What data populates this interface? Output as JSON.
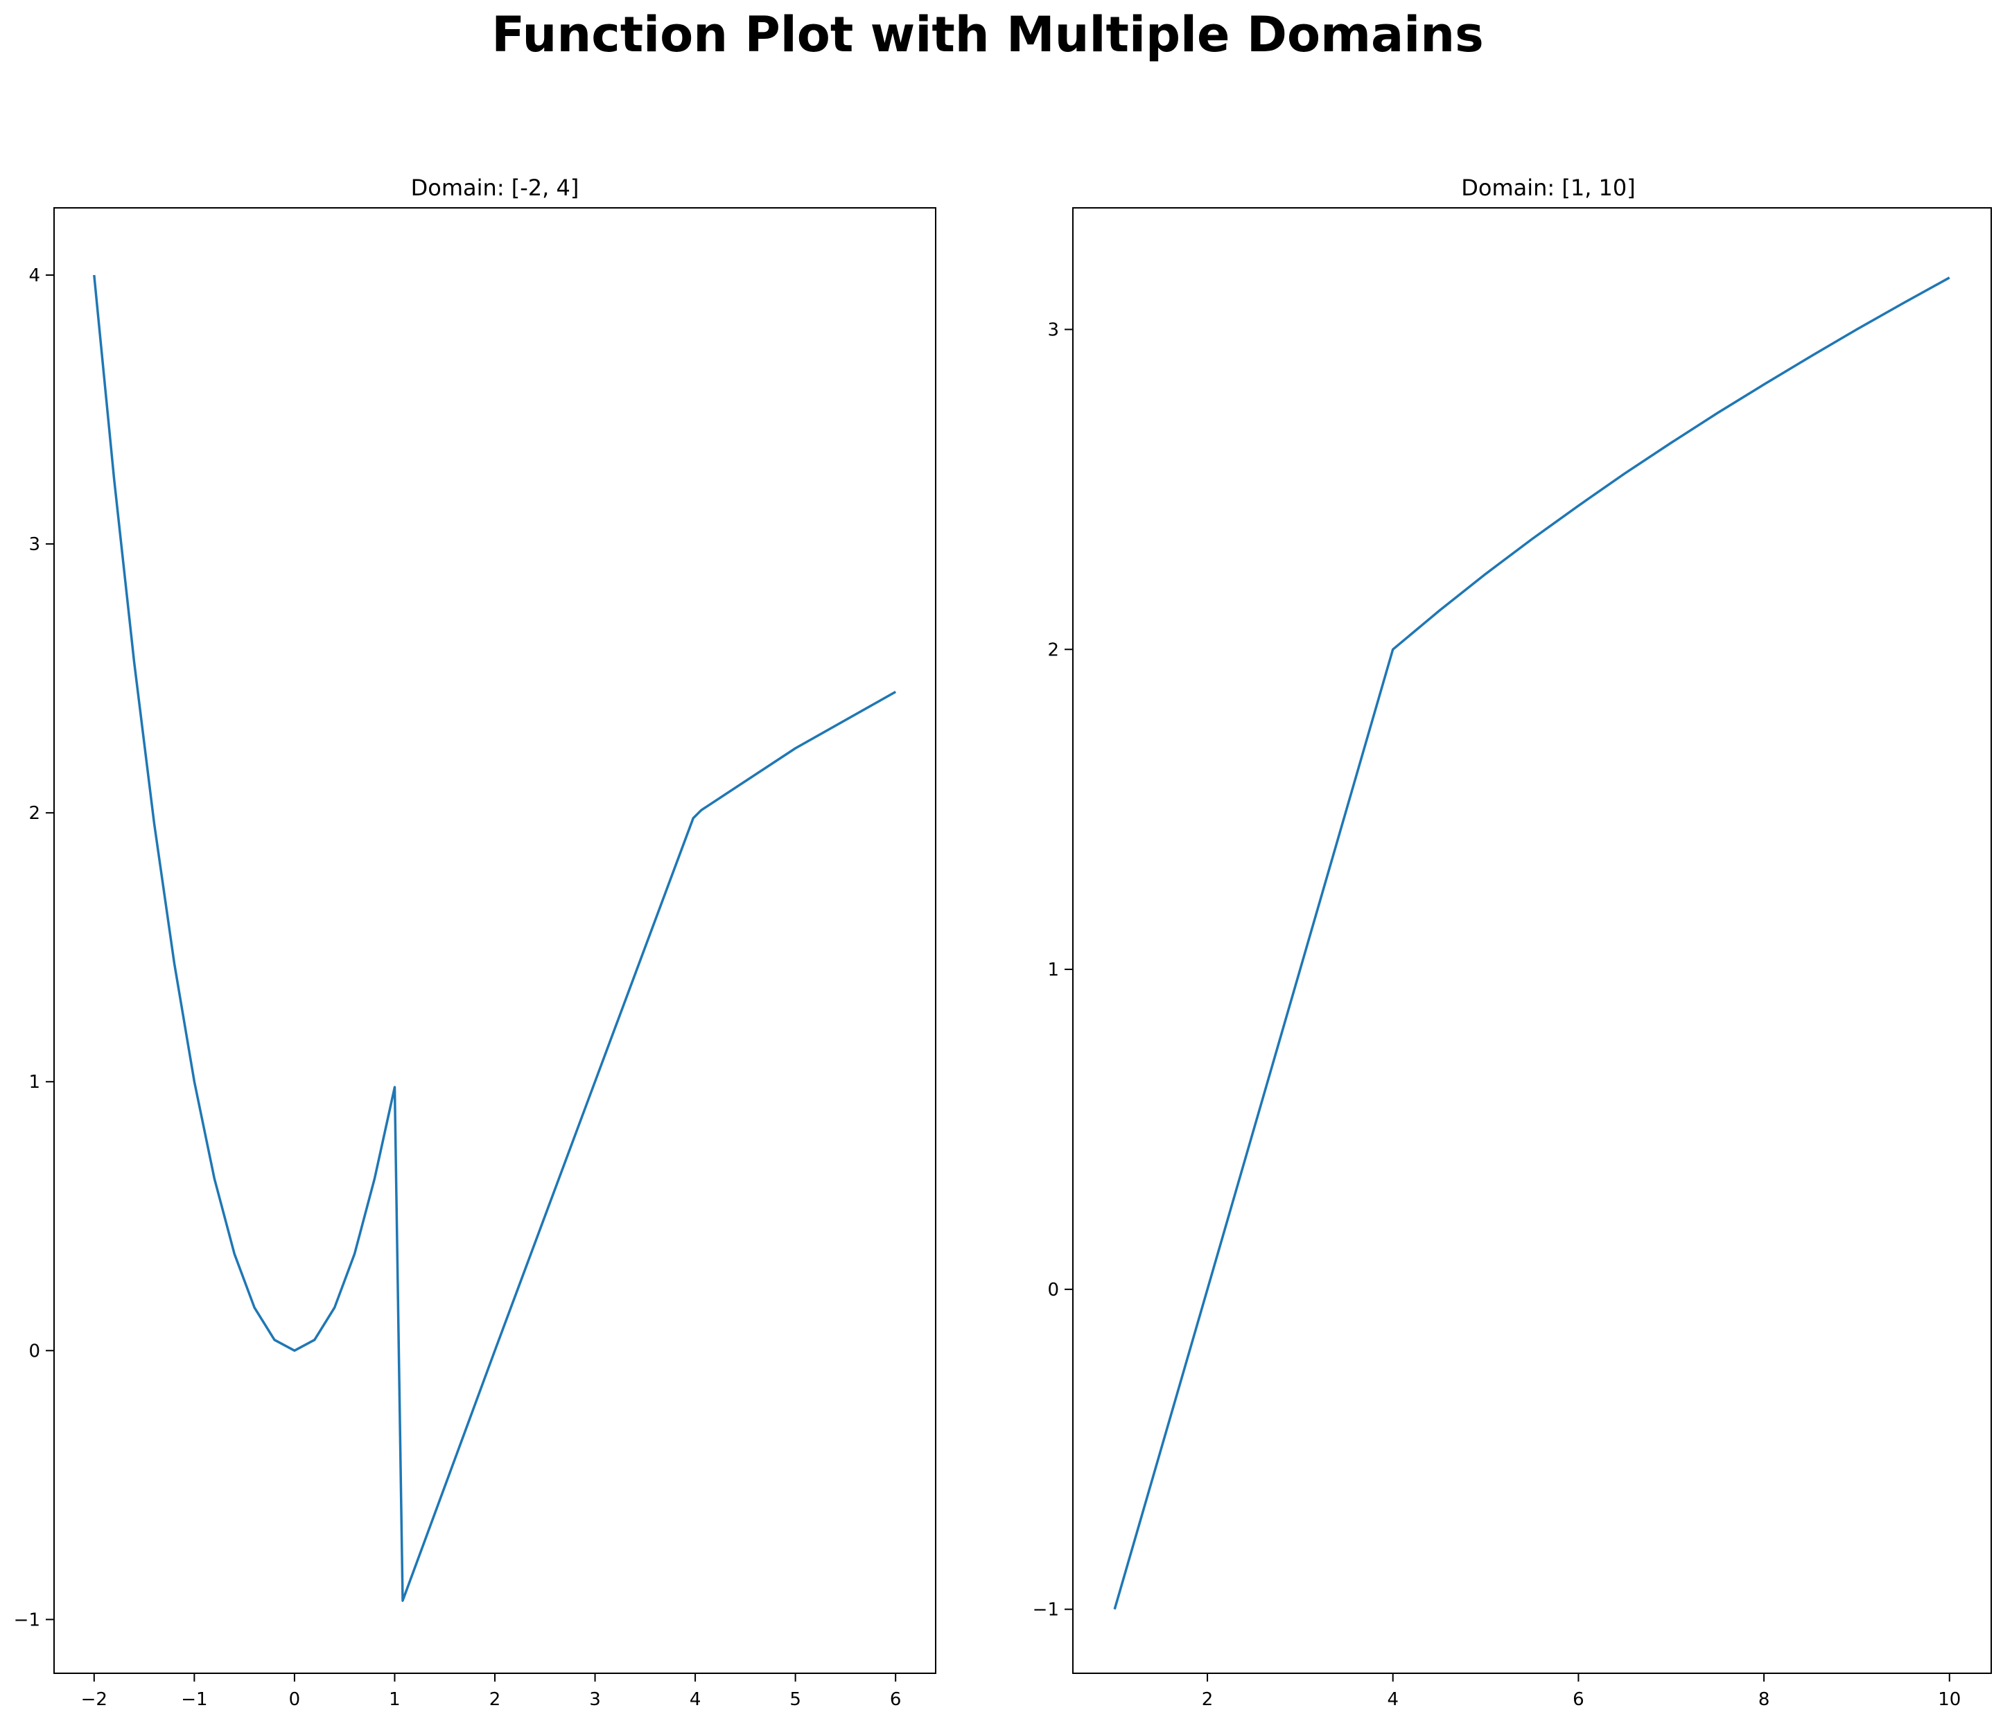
{
  "figure": {
    "title": "Function Plot with Multiple Domains"
  },
  "chart_data": [
    {
      "type": "line",
      "title": "Domain: [-2, 4]",
      "xlabel": "",
      "ylabel": "",
      "xlim": [
        -2.4,
        6.4
      ],
      "ylim": [
        -1.2,
        4.25
      ],
      "xticks": [
        -2,
        -1,
        0,
        1,
        2,
        3,
        4,
        5,
        6
      ],
      "xtick_labels": [
        "−2",
        "−1",
        "0",
        "1",
        "2",
        "3",
        "4",
        "5",
        "6"
      ],
      "yticks": [
        -1,
        0,
        1,
        2,
        3,
        4
      ],
      "ytick_labels": [
        "−1",
        "0",
        "1",
        "2",
        "3",
        "4"
      ],
      "grid": false,
      "color": "#1f77b4",
      "series": [
        {
          "x": [
            -2.0,
            -1.8,
            -1.6,
            -1.4,
            -1.2,
            -1.0,
            -0.8,
            -0.6,
            -0.4,
            -0.2,
            0.0,
            0.2,
            0.4,
            0.6,
            0.8,
            1.0,
            1.08,
            2.0,
            3.0,
            3.98,
            4.06,
            5.0,
            6.0
          ],
          "y": [
            4.0,
            3.24,
            2.56,
            1.96,
            1.44,
            1.0,
            0.64,
            0.36,
            0.16,
            0.04,
            0.0,
            0.04,
            0.16,
            0.36,
            0.64,
            0.98,
            -0.93,
            0.0,
            1.0,
            1.98,
            2.01,
            2.24,
            2.45
          ]
        }
      ]
    },
    {
      "type": "line",
      "title": "Domain: [1, 10]",
      "xlabel": "",
      "ylabel": "",
      "xlim": [
        0.55,
        10.45
      ],
      "ylim": [
        -1.2,
        3.38
      ],
      "xticks": [
        2,
        4,
        6,
        8,
        10
      ],
      "xtick_labels": [
        "2",
        "4",
        "6",
        "8",
        "10"
      ],
      "yticks": [
        -1,
        0,
        1,
        2,
        3
      ],
      "ytick_labels": [
        "−1",
        "0",
        "1",
        "2",
        "3"
      ],
      "grid": false,
      "color": "#1f77b4",
      "series": [
        {
          "x": [
            1.0,
            2.0,
            3.0,
            4.0,
            4.5,
            5.0,
            5.5,
            6.0,
            6.5,
            7.0,
            7.5,
            8.0,
            8.5,
            9.0,
            9.5,
            10.0
          ],
          "y": [
            -1.0,
            0.0,
            1.0,
            2.0,
            2.121,
            2.236,
            2.345,
            2.449,
            2.55,
            2.646,
            2.739,
            2.828,
            2.915,
            3.0,
            3.082,
            3.162
          ]
        }
      ]
    }
  ]
}
